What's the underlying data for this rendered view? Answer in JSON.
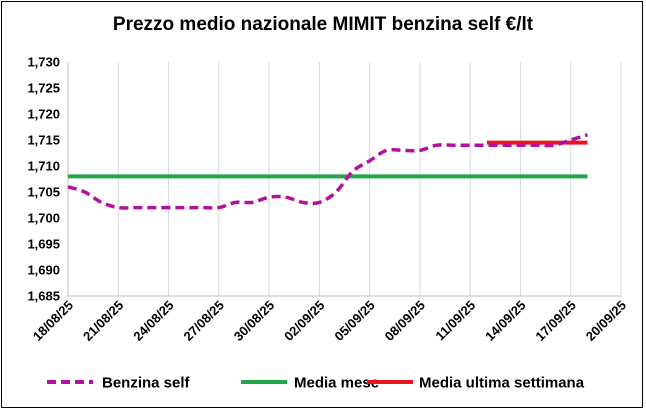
{
  "chart_data": {
    "type": "line",
    "title": "Prezzo medio nazionale MIMIT benzina self €/lt",
    "xlabel": "",
    "ylabel": "",
    "y_ticks": [
      "1,730",
      "1,725",
      "1,720",
      "1,715",
      "1,710",
      "1,705",
      "1,700",
      "1,695",
      "1,690",
      "1,685"
    ],
    "ylim": [
      1.685,
      1.73
    ],
    "x_ticks": [
      "18/08/25",
      "21/08/25",
      "24/08/25",
      "27/08/25",
      "30/08/25",
      "02/09/25",
      "05/09/25",
      "08/09/25",
      "11/09/25",
      "14/09/25",
      "17/09/25",
      "20/09/25"
    ],
    "x_start": "18/08/25",
    "x_end": "20/09/25",
    "grid": "vertical",
    "legend_position": "bottom",
    "series": [
      {
        "name": "Benzina self",
        "color": "#b4109c",
        "style": "dashed",
        "points": [
          [
            "18/08/25",
            1.706
          ],
          [
            "19/08/25",
            1.705
          ],
          [
            "20/08/25",
            1.703
          ],
          [
            "21/08/25",
            1.702
          ],
          [
            "22/08/25",
            1.702
          ],
          [
            "23/08/25",
            1.702
          ],
          [
            "24/08/25",
            1.702
          ],
          [
            "25/08/25",
            1.702
          ],
          [
            "26/08/25",
            1.702
          ],
          [
            "27/08/25",
            1.702
          ],
          [
            "28/08/25",
            1.703
          ],
          [
            "29/08/25",
            1.703
          ],
          [
            "30/08/25",
            1.704
          ],
          [
            "31/08/25",
            1.704
          ],
          [
            "01/09/25",
            1.703
          ],
          [
            "02/09/25",
            1.703
          ],
          [
            "03/09/25",
            1.705
          ],
          [
            "04/09/25",
            1.709
          ],
          [
            "05/09/25",
            1.711
          ],
          [
            "06/09/25",
            1.713
          ],
          [
            "07/09/25",
            1.713
          ],
          [
            "08/09/25",
            1.713
          ],
          [
            "09/09/25",
            1.714
          ],
          [
            "10/09/25",
            1.714
          ],
          [
            "11/09/25",
            1.714
          ],
          [
            "12/09/25",
            1.714
          ],
          [
            "13/09/25",
            1.714
          ],
          [
            "14/09/25",
            1.714
          ],
          [
            "15/09/25",
            1.714
          ],
          [
            "16/09/25",
            1.714
          ],
          [
            "17/09/25",
            1.715
          ],
          [
            "18/09/25",
            1.716
          ]
        ]
      },
      {
        "name": "Media mese",
        "color": "#1fa64a",
        "style": "solid",
        "points": [
          [
            "18/08/25",
            1.708
          ],
          [
            "18/09/25",
            1.708
          ]
        ]
      },
      {
        "name": "Media ultima settimana",
        "color": "#e8161c",
        "style": "solid",
        "points": [
          [
            "12/09/25",
            1.7145
          ],
          [
            "18/09/25",
            1.7145
          ]
        ]
      }
    ]
  }
}
